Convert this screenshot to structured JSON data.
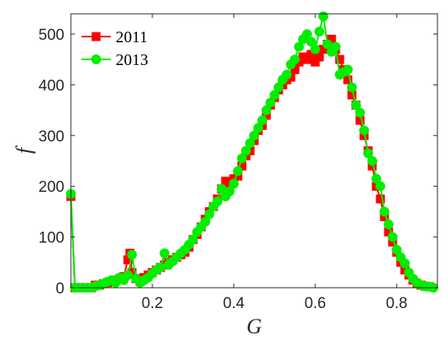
{
  "chart_data": {
    "type": "line",
    "xlabel": "G",
    "ylabel": "f",
    "xlim": [
      0.0,
      0.9
    ],
    "ylim": [
      0,
      540
    ],
    "xticks": [
      "0.2",
      "0.4",
      "0.6",
      "0.8"
    ],
    "xtick_values": [
      0.2,
      0.4,
      0.6,
      0.8
    ],
    "yticks": [
      "0",
      "100",
      "200",
      "300",
      "400",
      "500"
    ],
    "ytick_values": [
      0,
      100,
      200,
      300,
      400,
      500
    ],
    "grid": false,
    "legend_position": "top-left",
    "series": [
      {
        "name": "2011",
        "marker": "square",
        "color": "#ff0000",
        "points": [
          [
            0.0,
            180
          ],
          [
            0.01,
            0
          ],
          [
            0.02,
            0
          ],
          [
            0.03,
            0
          ],
          [
            0.04,
            0
          ],
          [
            0.05,
            0
          ],
          [
            0.06,
            5
          ],
          [
            0.07,
            5
          ],
          [
            0.08,
            8
          ],
          [
            0.09,
            10
          ],
          [
            0.1,
            12
          ],
          [
            0.11,
            15
          ],
          [
            0.12,
            18
          ],
          [
            0.13,
            22
          ],
          [
            0.14,
            55
          ],
          [
            0.145,
            68
          ],
          [
            0.15,
            30
          ],
          [
            0.16,
            18
          ],
          [
            0.17,
            12
          ],
          [
            0.18,
            20
          ],
          [
            0.19,
            25
          ],
          [
            0.2,
            30
          ],
          [
            0.21,
            35
          ],
          [
            0.22,
            40
          ],
          [
            0.23,
            45
          ],
          [
            0.24,
            50
          ],
          [
            0.25,
            55
          ],
          [
            0.26,
            60
          ],
          [
            0.27,
            65
          ],
          [
            0.28,
            70
          ],
          [
            0.29,
            80
          ],
          [
            0.3,
            95
          ],
          [
            0.31,
            105
          ],
          [
            0.32,
            120
          ],
          [
            0.33,
            135
          ],
          [
            0.34,
            150
          ],
          [
            0.35,
            160
          ],
          [
            0.36,
            175
          ],
          [
            0.37,
            195
          ],
          [
            0.38,
            210
          ],
          [
            0.39,
            200
          ],
          [
            0.4,
            215
          ],
          [
            0.41,
            220
          ],
          [
            0.42,
            240
          ],
          [
            0.43,
            260
          ],
          [
            0.44,
            270
          ],
          [
            0.45,
            290
          ],
          [
            0.46,
            310
          ],
          [
            0.47,
            320
          ],
          [
            0.48,
            340
          ],
          [
            0.49,
            360
          ],
          [
            0.5,
            375
          ],
          [
            0.51,
            390
          ],
          [
            0.52,
            400
          ],
          [
            0.53,
            410
          ],
          [
            0.54,
            415
          ],
          [
            0.55,
            430
          ],
          [
            0.56,
            445
          ],
          [
            0.57,
            455
          ],
          [
            0.58,
            450
          ],
          [
            0.59,
            460
          ],
          [
            0.6,
            445
          ],
          [
            0.61,
            455
          ],
          [
            0.62,
            470
          ],
          [
            0.63,
            480
          ],
          [
            0.64,
            490
          ],
          [
            0.65,
            470
          ],
          [
            0.66,
            450
          ],
          [
            0.67,
            430
          ],
          [
            0.68,
            410
          ],
          [
            0.69,
            380
          ],
          [
            0.7,
            360
          ],
          [
            0.71,
            330
          ],
          [
            0.72,
            300
          ],
          [
            0.73,
            270
          ],
          [
            0.74,
            240
          ],
          [
            0.75,
            200
          ],
          [
            0.76,
            175
          ],
          [
            0.77,
            140
          ],
          [
            0.78,
            110
          ],
          [
            0.79,
            90
          ],
          [
            0.8,
            70
          ],
          [
            0.81,
            50
          ],
          [
            0.82,
            35
          ],
          [
            0.83,
            25
          ],
          [
            0.84,
            15
          ],
          [
            0.85,
            8
          ],
          [
            0.86,
            5
          ],
          [
            0.87,
            3
          ],
          [
            0.88,
            2
          ]
        ]
      },
      {
        "name": "2013",
        "marker": "circle",
        "color": "#00ee00",
        "points": [
          [
            0.0,
            185
          ],
          [
            0.01,
            0
          ],
          [
            0.02,
            0
          ],
          [
            0.03,
            0
          ],
          [
            0.04,
            0
          ],
          [
            0.05,
            0
          ],
          [
            0.06,
            3
          ],
          [
            0.07,
            5
          ],
          [
            0.08,
            8
          ],
          [
            0.09,
            12
          ],
          [
            0.1,
            15
          ],
          [
            0.11,
            10
          ],
          [
            0.12,
            20
          ],
          [
            0.13,
            15
          ],
          [
            0.14,
            25
          ],
          [
            0.15,
            65
          ],
          [
            0.16,
            18
          ],
          [
            0.17,
            10
          ],
          [
            0.18,
            15
          ],
          [
            0.19,
            20
          ],
          [
            0.2,
            28
          ],
          [
            0.21,
            35
          ],
          [
            0.22,
            40
          ],
          [
            0.23,
            68
          ],
          [
            0.24,
            45
          ],
          [
            0.25,
            52
          ],
          [
            0.26,
            60
          ],
          [
            0.27,
            68
          ],
          [
            0.28,
            75
          ],
          [
            0.29,
            85
          ],
          [
            0.3,
            95
          ],
          [
            0.31,
            110
          ],
          [
            0.32,
            120
          ],
          [
            0.33,
            130
          ],
          [
            0.34,
            145
          ],
          [
            0.35,
            160
          ],
          [
            0.36,
            170
          ],
          [
            0.37,
            195
          ],
          [
            0.38,
            180
          ],
          [
            0.39,
            190
          ],
          [
            0.4,
            205
          ],
          [
            0.41,
            230
          ],
          [
            0.42,
            255
          ],
          [
            0.43,
            270
          ],
          [
            0.44,
            285
          ],
          [
            0.45,
            300
          ],
          [
            0.46,
            315
          ],
          [
            0.47,
            330
          ],
          [
            0.48,
            350
          ],
          [
            0.49,
            365
          ],
          [
            0.5,
            380
          ],
          [
            0.51,
            395
          ],
          [
            0.52,
            410
          ],
          [
            0.53,
            420
          ],
          [
            0.54,
            440
          ],
          [
            0.55,
            450
          ],
          [
            0.56,
            475
          ],
          [
            0.57,
            490
          ],
          [
            0.58,
            500
          ],
          [
            0.59,
            485
          ],
          [
            0.6,
            470
          ],
          [
            0.61,
            505
          ],
          [
            0.62,
            535
          ],
          [
            0.63,
            480
          ],
          [
            0.64,
            465
          ],
          [
            0.65,
            475
          ],
          [
            0.66,
            420
          ],
          [
            0.67,
            425
          ],
          [
            0.68,
            430
          ],
          [
            0.69,
            395
          ],
          [
            0.7,
            360
          ],
          [
            0.71,
            345
          ],
          [
            0.72,
            310
          ],
          [
            0.73,
            265
          ],
          [
            0.74,
            250
          ],
          [
            0.75,
            215
          ],
          [
            0.76,
            200
          ],
          [
            0.77,
            150
          ],
          [
            0.78,
            125
          ],
          [
            0.79,
            100
          ],
          [
            0.8,
            75
          ],
          [
            0.81,
            60
          ],
          [
            0.82,
            48
          ],
          [
            0.83,
            30
          ],
          [
            0.84,
            18
          ],
          [
            0.85,
            10
          ],
          [
            0.86,
            5
          ],
          [
            0.87,
            3
          ],
          [
            0.88,
            2
          ],
          [
            0.89,
            0
          ]
        ]
      }
    ]
  }
}
